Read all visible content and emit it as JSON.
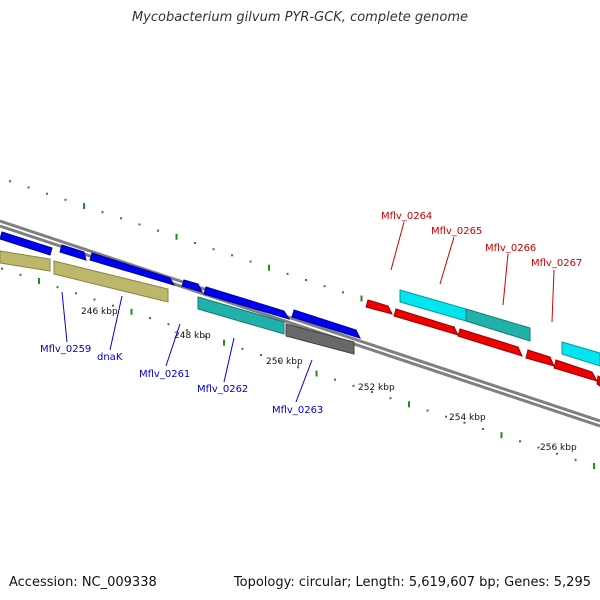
{
  "title": "Mycobacterium gilvum PYR-GCK, complete genome",
  "footer": {
    "accession": "Accession: NC_009338",
    "summary": "Topology: circular; Length: 5,619,607 bp; Genes: 5,295"
  },
  "colors": {
    "backbone": "#7f7f7f",
    "tick": "#228b22",
    "blue_gene": "#0000ee",
    "khaki_gene": "#bdb76b",
    "teal_gene": "#20b2aa",
    "gray_gene": "#696969",
    "red_gene": "#ee0000",
    "cyan_gene": "#00e5ee",
    "blue_label": "#0000cc",
    "red_label": "#cc0000"
  },
  "kbp_labels": [
    "246 kbp",
    "248 kbp",
    "250 kbp",
    "252 kbp",
    "254 kbp",
    "256 kbp"
  ],
  "gene_labels": {
    "blue": [
      "Mflv_0259",
      "dnaK",
      "Mflv_0261",
      "Mflv_0262",
      "Mflv_0263"
    ],
    "red": [
      "Mflv_0264",
      "Mflv_0265",
      "Mflv_0266",
      "Mflv_0267"
    ]
  }
}
